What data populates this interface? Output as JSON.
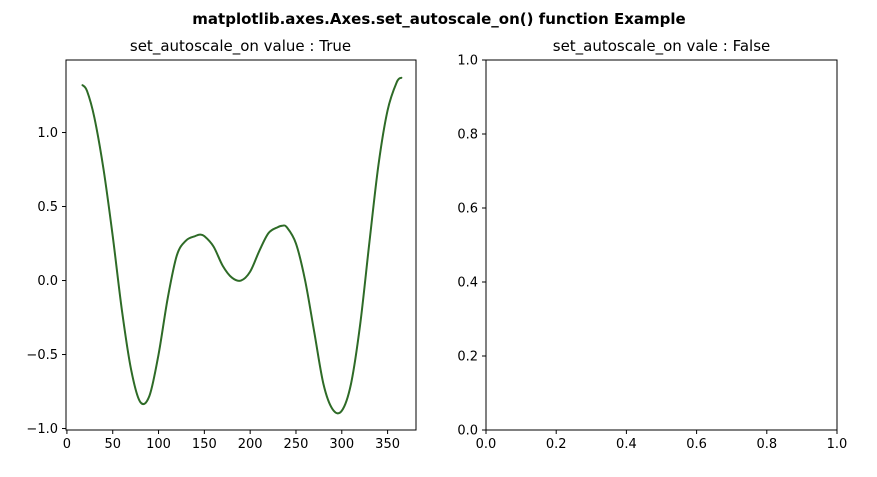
{
  "figure": {
    "suptitle": "matplotlib.axes.Axes.set_autoscale_on() function Example"
  },
  "chart_data": [
    {
      "type": "line",
      "title": "set_autoscale_on value : True",
      "xlabel": "",
      "ylabel": "",
      "xlim": [
        -1,
        381
      ],
      "ylim": [
        -1.01,
        1.49
      ],
      "grid": false,
      "xticks": [
        0,
        50,
        100,
        150,
        200,
        250,
        300,
        350
      ],
      "xtick_labels": [
        "0",
        "50",
        "100",
        "150",
        "200",
        "250",
        "300",
        "350"
      ],
      "yticks": [
        -1.0,
        -0.5,
        0.0,
        0.5,
        1.0
      ],
      "ytick_labels": [
        "−1.0",
        "−0.5",
        "0.0",
        "0.5",
        "1.0"
      ],
      "series": [
        {
          "color": "#2e6b27",
          "x": [
            17,
            22,
            30,
            40,
            50,
            60,
            70,
            80,
            90,
            100,
            110,
            120,
            130,
            140,
            145,
            150,
            160,
            170,
            180,
            190,
            200,
            210,
            220,
            230,
            235,
            240,
            250,
            260,
            270,
            280,
            290,
            300,
            310,
            320,
            330,
            340,
            350,
            360,
            365
          ],
          "y": [
            1.32,
            1.28,
            1.1,
            0.75,
            0.3,
            -0.2,
            -0.6,
            -0.82,
            -0.78,
            -0.5,
            -0.12,
            0.17,
            0.27,
            0.3,
            0.31,
            0.3,
            0.23,
            0.1,
            0.02,
            0.0,
            0.06,
            0.2,
            0.32,
            0.36,
            0.37,
            0.36,
            0.25,
            0.0,
            -0.35,
            -0.7,
            -0.87,
            -0.88,
            -0.7,
            -0.3,
            0.25,
            0.78,
            1.15,
            1.34,
            1.37
          ]
        }
      ]
    },
    {
      "type": "line",
      "title": "set_autoscale_on vale : False",
      "xlabel": "",
      "ylabel": "",
      "xlim": [
        0,
        1
      ],
      "ylim": [
        0,
        1
      ],
      "grid": false,
      "xticks": [
        0.0,
        0.2,
        0.4,
        0.6,
        0.8,
        1.0
      ],
      "xtick_labels": [
        "0.0",
        "0.2",
        "0.4",
        "0.6",
        "0.8",
        "1.0"
      ],
      "yticks": [
        0.0,
        0.2,
        0.4,
        0.6,
        0.8,
        1.0
      ],
      "ytick_labels": [
        "0.0",
        "0.2",
        "0.4",
        "0.6",
        "0.8",
        "1.0"
      ],
      "series": []
    }
  ]
}
